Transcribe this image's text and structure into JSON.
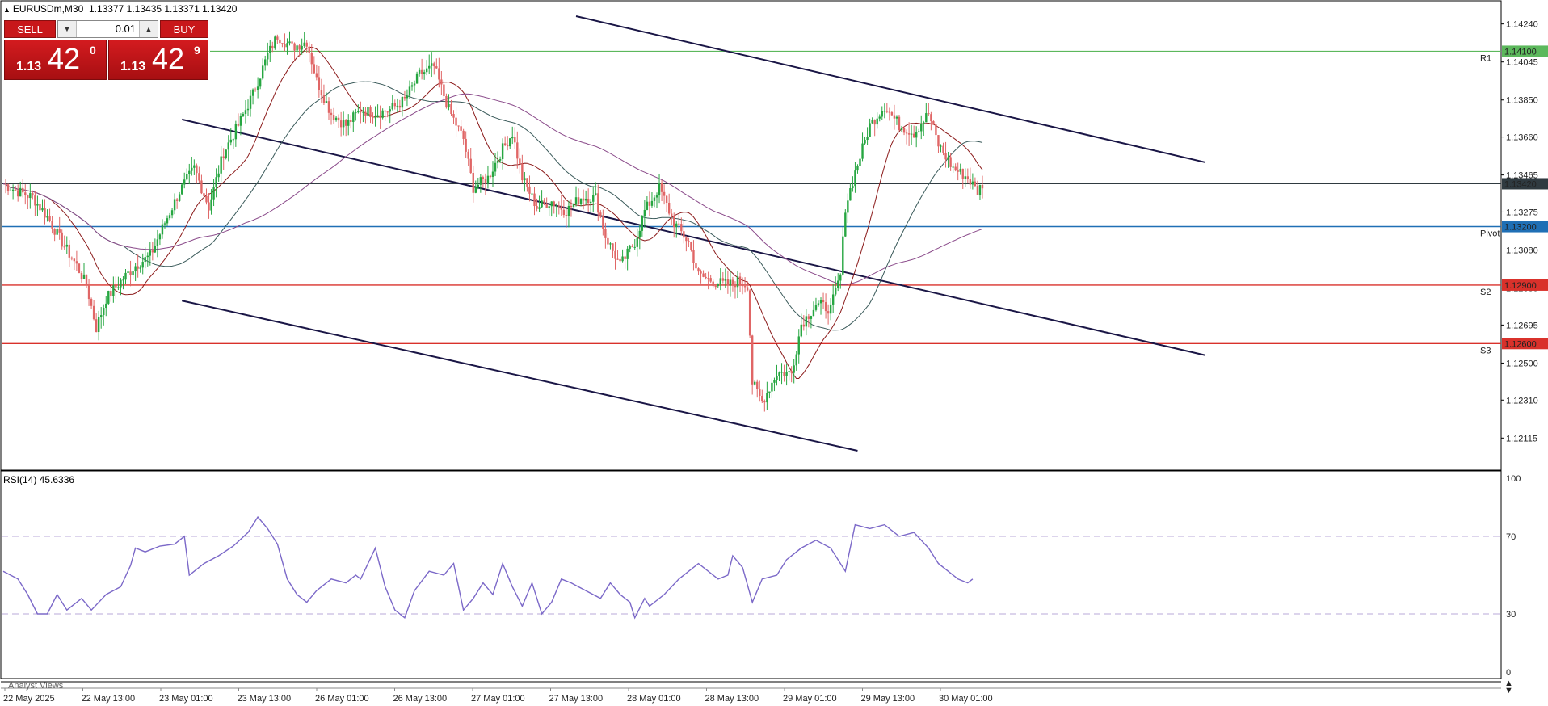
{
  "header": {
    "symbol": "EURUSDm,M30",
    "ohlc": "1.13377 1.13435 1.13371 1.13420"
  },
  "trade_panel": {
    "sell_label": "SELL",
    "buy_label": "BUY",
    "lot": "0.01",
    "sell_small": "1.13",
    "sell_big": "42",
    "sell_sup": "0",
    "buy_small": "1.13",
    "buy_big": "42",
    "buy_sup": "9"
  },
  "rsi_header": "RSI(14) 45.6336",
  "footer_tab": "Analyst Views",
  "colors": {
    "bull": "#26a641",
    "bear": "#e06666",
    "r1": "#5cb85c",
    "pivot": "#1f6fb5",
    "support": "#d9312b",
    "channel": "#1a1646",
    "rsi": "#7b68c8",
    "current": "#2f3a40"
  },
  "chart_data": [
    {
      "type": "candlestick",
      "symbol": "EURUSDm",
      "timeframe": "M30",
      "ylim": [
        1.1205,
        1.1428
      ],
      "y_ticks": [
        "1.14240",
        "1.14045",
        "1.13850",
        "1.13660",
        "1.13465",
        "1.13275",
        "1.13080",
        "1.12885",
        "1.12695",
        "1.12500",
        "1.12310",
        "1.12115"
      ],
      "x_ticks": [
        "22 May 2025",
        "22 May 13:00",
        "23 May 01:00",
        "23 May 13:00",
        "26 May 01:00",
        "26 May 13:00",
        "27 May 01:00",
        "27 May 13:00",
        "28 May 01:00",
        "28 May 13:00",
        "29 May 01:00",
        "29 May 13:00",
        "30 May 01:00"
      ],
      "close_path": [
        [
          0,
          1.1342
        ],
        [
          6,
          1.1338
        ],
        [
          12,
          1.1335
        ],
        [
          18,
          1.1325
        ],
        [
          24,
          1.1312
        ],
        [
          30,
          1.13
        ],
        [
          34,
          1.129
        ],
        [
          38,
          1.1268
        ],
        [
          42,
          1.1283
        ],
        [
          48,
          1.1292
        ],
        [
          54,
          1.13
        ],
        [
          60,
          1.1305
        ],
        [
          66,
          1.1322
        ],
        [
          72,
          1.1338
        ],
        [
          78,
          1.135
        ],
        [
          84,
          1.133
        ],
        [
          90,
          1.1358
        ],
        [
          96,
          1.1372
        ],
        [
          102,
          1.1388
        ],
        [
          108,
          1.1408
        ],
        [
          112,
          1.1418
        ],
        [
          118,
          1.1412
        ],
        [
          124,
          1.1415
        ],
        [
          128,
          1.1395
        ],
        [
          134,
          1.1378
        ],
        [
          140,
          1.1372
        ],
        [
          146,
          1.138
        ],
        [
          152,
          1.1378
        ],
        [
          158,
          1.138
        ],
        [
          164,
          1.1385
        ],
        [
          170,
          1.1398
        ],
        [
          176,
          1.1402
        ],
        [
          182,
          1.138
        ],
        [
          188,
          1.1365
        ],
        [
          192,
          1.134
        ],
        [
          198,
          1.1345
        ],
        [
          204,
          1.136
        ],
        [
          208,
          1.1368
        ],
        [
          212,
          1.1345
        ],
        [
          218,
          1.133
        ],
        [
          224,
          1.1333
        ],
        [
          230,
          1.1328
        ],
        [
          236,
          1.1335
        ],
        [
          242,
          1.1335
        ],
        [
          246,
          1.1315
        ],
        [
          252,
          1.13
        ],
        [
          258,
          1.1312
        ],
        [
          262,
          1.1328
        ],
        [
          268,
          1.134
        ],
        [
          274,
          1.1322
        ],
        [
          280,
          1.1312
        ],
        [
          284,
          1.1295
        ],
        [
          290,
          1.1292
        ],
        [
          296,
          1.129
        ],
        [
          300,
          1.1292
        ],
        [
          304,
          1.129
        ],
        [
          306,
          1.124
        ],
        [
          310,
          1.123
        ],
        [
          316,
          1.1245
        ],
        [
          322,
          1.1245
        ],
        [
          326,
          1.127
        ],
        [
          332,
          1.128
        ],
        [
          338,
          1.1278
        ],
        [
          342,
          1.1295
        ],
        [
          344,
          1.133
        ],
        [
          348,
          1.1348
        ],
        [
          354,
          1.1372
        ],
        [
          360,
          1.1382
        ],
        [
          366,
          1.1372
        ],
        [
          372,
          1.1368
        ],
        [
          378,
          1.1378
        ],
        [
          382,
          1.1362
        ],
        [
          388,
          1.135
        ],
        [
          394,
          1.1345
        ],
        [
          398,
          1.1338
        ],
        [
          400,
          1.1342
        ]
      ],
      "levels": [
        {
          "label": "1.14100",
          "value": 1.141,
          "tag": "R1"
        },
        {
          "label": "1.13420",
          "value": 1.1342,
          "tag": ""
        },
        {
          "label": "1.13200",
          "value": 1.132,
          "tag": "Pivot"
        },
        {
          "label": "1.12900",
          "value": 1.129,
          "tag": "S2"
        },
        {
          "label": "1.12600",
          "value": 1.126,
          "tag": "S3"
        }
      ],
      "channel_lines": [
        {
          "from": [
            73,
            1.1375
          ],
          "to": [
            491,
            1.1254
          ]
        },
        {
          "from": [
            73,
            1.1282
          ],
          "to": [
            349,
            1.1205
          ]
        },
        {
          "from": [
            234,
            1.1428
          ],
          "to": [
            491,
            1.1353
          ]
        }
      ]
    },
    {
      "type": "line",
      "title": "RSI(14) 45.6336",
      "ylim": [
        0,
        100
      ],
      "y_ticks": [
        "100",
        "70",
        "30",
        "0"
      ],
      "levels": [
        70,
        30
      ],
      "series": [
        {
          "values": [
            [
              0,
              52
            ],
            [
              6,
              48
            ],
            [
              10,
              40
            ],
            [
              14,
              30
            ],
            [
              18,
              30
            ],
            [
              22,
              40
            ],
            [
              26,
              32
            ],
            [
              32,
              38
            ],
            [
              36,
              32
            ],
            [
              42,
              40
            ],
            [
              48,
              44
            ],
            [
              52,
              55
            ],
            [
              54,
              64
            ],
            [
              58,
              62
            ],
            [
              64,
              65
            ],
            [
              70,
              66
            ],
            [
              74,
              70
            ],
            [
              76,
              50
            ],
            [
              82,
              56
            ],
            [
              88,
              60
            ],
            [
              94,
              65
            ],
            [
              100,
              72
            ],
            [
              104,
              80
            ],
            [
              108,
              74
            ],
            [
              112,
              66
            ],
            [
              116,
              48
            ],
            [
              120,
              40
            ],
            [
              124,
              36
            ],
            [
              128,
              42
            ],
            [
              134,
              48
            ],
            [
              140,
              46
            ],
            [
              144,
              50
            ],
            [
              146,
              48
            ],
            [
              152,
              64
            ],
            [
              156,
              44
            ],
            [
              160,
              32
            ],
            [
              164,
              28
            ],
            [
              168,
              42
            ],
            [
              174,
              52
            ],
            [
              180,
              50
            ],
            [
              184,
              56
            ],
            [
              188,
              32
            ],
            [
              192,
              38
            ],
            [
              196,
              46
            ],
            [
              200,
              40
            ],
            [
              204,
              56
            ],
            [
              208,
              44
            ],
            [
              212,
              34
            ],
            [
              216,
              46
            ],
            [
              220,
              30
            ],
            [
              224,
              36
            ],
            [
              228,
              48
            ],
            [
              232,
              46
            ],
            [
              238,
              42
            ],
            [
              244,
              38
            ],
            [
              248,
              46
            ],
            [
              252,
              40
            ],
            [
              256,
              36
            ],
            [
              258,
              28
            ],
            [
              262,
              38
            ],
            [
              264,
              34
            ],
            [
              270,
              40
            ],
            [
              276,
              48
            ],
            [
              284,
              56
            ],
            [
              292,
              48
            ],
            [
              296,
              50
            ],
            [
              298,
              60
            ],
            [
              302,
              54
            ],
            [
              306,
              36
            ],
            [
              310,
              48
            ],
            [
              316,
              50
            ],
            [
              320,
              58
            ],
            [
              326,
              64
            ],
            [
              332,
              68
            ],
            [
              338,
              64
            ],
            [
              344,
              52
            ],
            [
              348,
              76
            ],
            [
              354,
              74
            ],
            [
              360,
              76
            ],
            [
              366,
              70
            ],
            [
              372,
              72
            ],
            [
              378,
              64
            ],
            [
              382,
              56
            ],
            [
              386,
              52
            ],
            [
              390,
              48
            ],
            [
              394,
              46
            ],
            [
              396,
              48
            ]
          ]
        }
      ]
    }
  ]
}
